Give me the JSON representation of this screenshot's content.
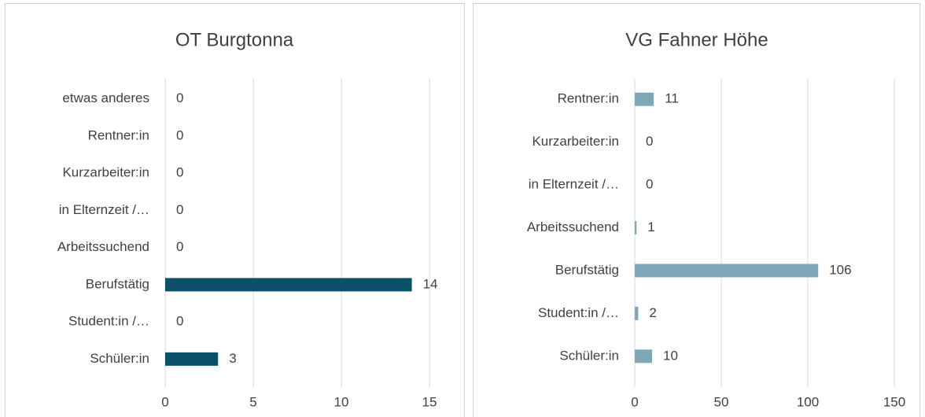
{
  "chart_data": [
    {
      "type": "bar",
      "orientation": "horizontal",
      "title": "OT Burgtonna",
      "categories": [
        "etwas anderes",
        "Rentner:in",
        "Kurzarbeiter:in",
        "in Elternzeit /…",
        "Arbeitssuchend",
        "Berufstätig",
        "Student:in /…",
        "Schüler:in"
      ],
      "values": [
        0,
        0,
        0,
        0,
        0,
        14,
        0,
        3
      ],
      "color": "#0b5069",
      "xlim": [
        0,
        15
      ],
      "xticks": [
        0,
        5,
        10,
        15
      ],
      "grid": true
    },
    {
      "type": "bar",
      "orientation": "horizontal",
      "title": "VG Fahner Höhe",
      "categories": [
        "Rentner:in",
        "Kurzarbeiter:in",
        "in Elternzeit /…",
        "Arbeitssuchend",
        "Berufstätig",
        "Student:in /…",
        "Schüler:in"
      ],
      "values": [
        11,
        0,
        0,
        1,
        106,
        2,
        10
      ],
      "color": "#7ea8b7",
      "xlim": [
        0,
        150
      ],
      "xticks": [
        0,
        50,
        100,
        150
      ],
      "grid": true
    }
  ]
}
